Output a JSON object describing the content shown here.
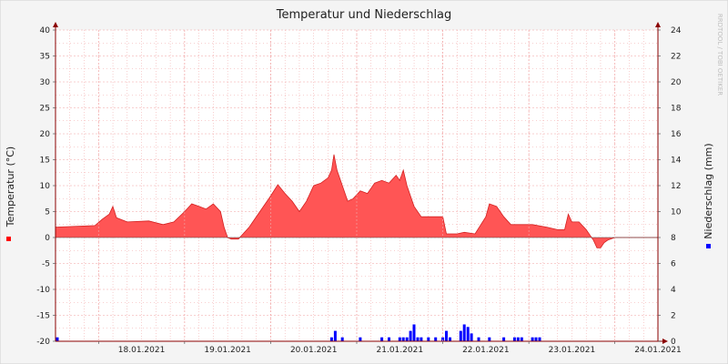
{
  "chart_data": {
    "type": "area",
    "title": "Temperatur und Niederschlag",
    "watermark": "RRDTOOL / TOBI OETIKER",
    "ylabel": "Temperatur (°C)",
    "y2label": "Niederschlag (mm)",
    "ylim": [
      -20,
      40
    ],
    "y2lim": [
      0,
      24
    ],
    "yticks": [
      "40",
      "35",
      "30",
      "25",
      "20",
      "15",
      "10",
      "5",
      "0",
      "-5",
      "-10",
      "-15",
      "-20"
    ],
    "y2ticks": [
      "24",
      "22",
      "20",
      "18",
      "16",
      "14",
      "12",
      "10",
      "8",
      "6",
      "4",
      "2",
      "0"
    ],
    "xlim": [
      "2021-01-17T12:00",
      "2021-01-24T12:00"
    ],
    "xticks": [
      "18.01.2021",
      "19.01.2021",
      "20.01.2021",
      "21.01.2021",
      "22.01.2021",
      "23.01.2021",
      "24.01.2021"
    ],
    "grid": true,
    "colors": {
      "temperature": "#ff5555",
      "temperature_line": "#d42020",
      "precipitation": "#0000ff",
      "grid": "#f0a0a0",
      "frame": "#8b0000",
      "plot_bg": "#ffffff"
    },
    "series": [
      {
        "name": "Temperatur (°C)",
        "kind": "area",
        "points": [
          [
            "2021-01-17T12:00",
            2
          ],
          [
            "2021-01-17T23:00",
            2.3
          ],
          [
            "2021-01-18T01:00",
            3.5
          ],
          [
            "2021-01-18T03:00",
            4.5
          ],
          [
            "2021-01-18T04:00",
            6
          ],
          [
            "2021-01-18T05:00",
            3.8
          ],
          [
            "2021-01-18T08:00",
            3
          ],
          [
            "2021-01-18T14:00",
            3.2
          ],
          [
            "2021-01-18T18:00",
            2.5
          ],
          [
            "2021-01-18T21:00",
            3
          ],
          [
            "2021-01-19T00:00",
            5
          ],
          [
            "2021-01-19T02:00",
            6.5
          ],
          [
            "2021-01-19T04:00",
            6
          ],
          [
            "2021-01-19T06:00",
            5.5
          ],
          [
            "2021-01-19T08:00",
            6.5
          ],
          [
            "2021-01-19T10:00",
            5
          ],
          [
            "2021-01-19T11:00",
            2
          ],
          [
            "2021-01-19T12:00",
            0
          ],
          [
            "2021-01-19T13:00",
            -0.3
          ],
          [
            "2021-01-19T15:00",
            -0.3
          ],
          [
            "2021-01-19T18:00",
            2
          ],
          [
            "2021-01-19T21:00",
            5
          ],
          [
            "2021-01-20T00:00",
            8
          ],
          [
            "2021-01-20T02:00",
            10.2
          ],
          [
            "2021-01-20T04:00",
            8.5
          ],
          [
            "2021-01-20T06:00",
            7
          ],
          [
            "2021-01-20T08:00",
            5
          ],
          [
            "2021-01-20T10:00",
            7
          ],
          [
            "2021-01-20T12:00",
            10
          ],
          [
            "2021-01-20T14:00",
            10.5
          ],
          [
            "2021-01-20T16:00",
            11.5
          ],
          [
            "2021-01-20T17:00",
            13
          ],
          [
            "2021-01-20T17:40",
            16
          ],
          [
            "2021-01-20T18:30",
            13
          ],
          [
            "2021-01-20T20:00",
            10
          ],
          [
            "2021-01-20T21:30",
            7
          ],
          [
            "2021-01-20T23:00",
            7.5
          ],
          [
            "2021-01-21T01:00",
            9
          ],
          [
            "2021-01-21T03:00",
            8.5
          ],
          [
            "2021-01-21T05:00",
            10.5
          ],
          [
            "2021-01-21T07:00",
            11
          ],
          [
            "2021-01-21T09:00",
            10.5
          ],
          [
            "2021-01-21T11:00",
            12
          ],
          [
            "2021-01-21T12:00",
            11
          ],
          [
            "2021-01-21T13:00",
            13
          ],
          [
            "2021-01-21T14:00",
            10
          ],
          [
            "2021-01-21T16:00",
            6
          ],
          [
            "2021-01-21T18:00",
            4
          ],
          [
            "2021-01-21T22:00",
            4
          ],
          [
            "2021-01-22T00:00",
            4
          ],
          [
            "2021-01-22T01:00",
            0.7
          ],
          [
            "2021-01-22T04:00",
            0.7
          ],
          [
            "2021-01-22T06:00",
            1
          ],
          [
            "2021-01-22T09:00",
            0.7
          ],
          [
            "2021-01-22T12:00",
            4
          ],
          [
            "2021-01-22T13:00",
            6.5
          ],
          [
            "2021-01-22T15:00",
            6
          ],
          [
            "2021-01-22T17:00",
            4
          ],
          [
            "2021-01-22T19:00",
            2.5
          ],
          [
            "2021-01-22T22:00",
            2.5
          ],
          [
            "2021-01-23T01:00",
            2.5
          ],
          [
            "2021-01-23T05:00",
            2
          ],
          [
            "2021-01-23T08:00",
            1.5
          ],
          [
            "2021-01-23T10:00",
            1.5
          ],
          [
            "2021-01-23T11:00",
            4.5
          ],
          [
            "2021-01-23T12:00",
            3
          ],
          [
            "2021-01-23T14:00",
            3
          ],
          [
            "2021-01-23T16:00",
            1.5
          ],
          [
            "2021-01-23T18:00",
            -0.5
          ],
          [
            "2021-01-23T19:00",
            -2
          ],
          [
            "2021-01-23T20:00",
            -2
          ],
          [
            "2021-01-23T21:00",
            -1
          ],
          [
            "2021-01-23T22:00",
            -0.5
          ],
          [
            "2021-01-24T00:00",
            0
          ],
          [
            "2021-01-24T12:00",
            0
          ]
        ]
      },
      {
        "name": "Niederschlag (mm)",
        "kind": "bar",
        "axis": "right",
        "points": [
          [
            "2021-01-17T12:30",
            0.3
          ],
          [
            "2021-01-20T17:00",
            0.3
          ],
          [
            "2021-01-20T18:00",
            0.8
          ],
          [
            "2021-01-20T20:00",
            0.3
          ],
          [
            "2021-01-21T01:00",
            0.3
          ],
          [
            "2021-01-21T07:00",
            0.3
          ],
          [
            "2021-01-21T09:00",
            0.3
          ],
          [
            "2021-01-21T12:00",
            0.3
          ],
          [
            "2021-01-21T13:00",
            0.3
          ],
          [
            "2021-01-21T14:00",
            0.3
          ],
          [
            "2021-01-21T15:00",
            0.8
          ],
          [
            "2021-01-21T16:00",
            1.3
          ],
          [
            "2021-01-21T17:00",
            0.3
          ],
          [
            "2021-01-21T18:00",
            0.3
          ],
          [
            "2021-01-21T20:00",
            0.3
          ],
          [
            "2021-01-21T22:00",
            0.3
          ],
          [
            "2021-01-22T00:00",
            0.3
          ],
          [
            "2021-01-22T01:00",
            0.8
          ],
          [
            "2021-01-22T02:00",
            0.3
          ],
          [
            "2021-01-22T05:00",
            0.8
          ],
          [
            "2021-01-22T06:00",
            1.3
          ],
          [
            "2021-01-22T07:00",
            1.1
          ],
          [
            "2021-01-22T08:00",
            0.6
          ],
          [
            "2021-01-22T10:00",
            0.3
          ],
          [
            "2021-01-22T13:00",
            0.3
          ],
          [
            "2021-01-22T17:00",
            0.3
          ],
          [
            "2021-01-22T20:00",
            0.3
          ],
          [
            "2021-01-22T21:00",
            0.3
          ],
          [
            "2021-01-22T22:00",
            0.3
          ],
          [
            "2021-01-23T01:00",
            0.3
          ],
          [
            "2021-01-23T02:00",
            0.3
          ],
          [
            "2021-01-23T03:00",
            0.3
          ]
        ]
      }
    ]
  }
}
